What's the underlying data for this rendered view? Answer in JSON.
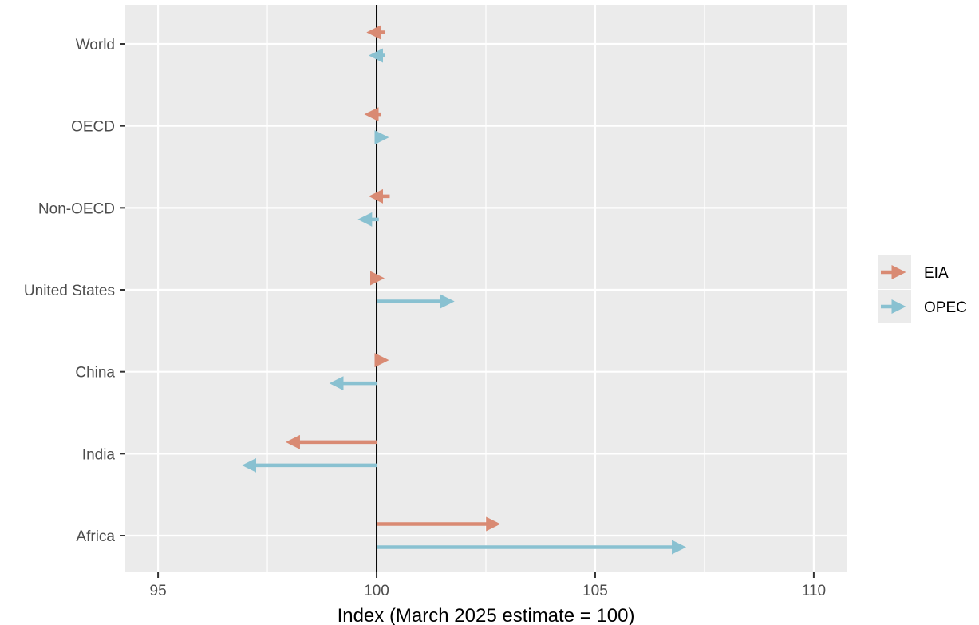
{
  "chart_data": {
    "type": "arrow",
    "xlabel": "Index (March 2025 estimate = 100)",
    "xlim": [
      94.25,
      110.75
    ],
    "x_ticks": [
      95,
      100,
      105,
      110
    ],
    "x_tick_labels": [
      "95",
      "100",
      "105",
      "110"
    ],
    "x_minor_ticks": [
      97.5,
      102.5,
      107.5
    ],
    "reference_line": 100,
    "grid": true,
    "legend_position": "right",
    "categories": [
      "World",
      "OECD",
      "Non-OECD",
      "United States",
      "China",
      "India",
      "Africa"
    ],
    "series": [
      {
        "name": "EIA",
        "color": "#d98a73",
        "from": [
          100.2,
          100.1,
          100.3,
          99.9,
          100.0,
          100.0,
          100.0
        ],
        "to": [
          99.85,
          99.8,
          99.9,
          100.1,
          100.2,
          98.0,
          102.75
        ]
      },
      {
        "name": "OPEC",
        "color": "#89c1d1",
        "from": [
          100.2,
          100.0,
          100.05,
          100.0,
          100.0,
          100.0,
          100.0
        ],
        "to": [
          99.9,
          100.2,
          99.65,
          101.7,
          99.0,
          97.0,
          107.0
        ]
      }
    ]
  }
}
